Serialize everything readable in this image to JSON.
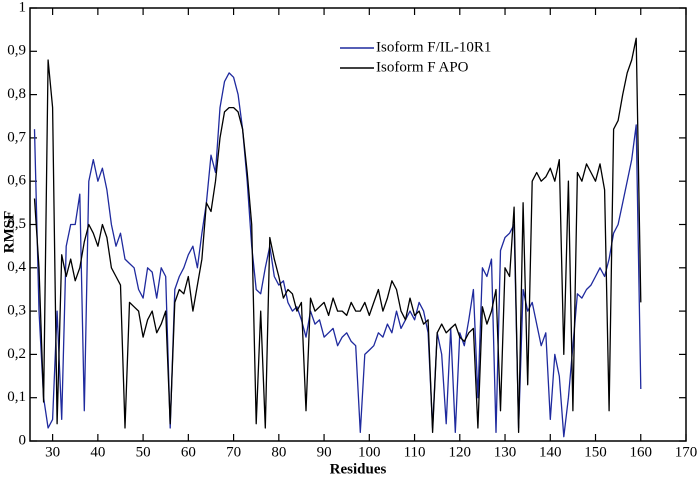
{
  "chart_data": {
    "type": "line",
    "xlabel": "Residues",
    "ylabel": "RMSF",
    "xlim": [
      25,
      170
    ],
    "xticks": [
      30,
      40,
      50,
      60,
      70,
      80,
      90,
      100,
      110,
      120,
      130,
      140,
      150,
      160,
      170
    ],
    "ylim": [
      0,
      1
    ],
    "yticks": [
      0,
      {
        "value": 0.1,
        "label": "0,1"
      },
      {
        "value": 0.2,
        "label": "0,2"
      },
      {
        "value": 0.3,
        "label": "0,3"
      },
      {
        "value": 0.4,
        "label": "0,4"
      },
      {
        "value": 0.5,
        "label": "0,5"
      },
      {
        "value": 0.6,
        "label": "0,6"
      },
      {
        "value": 0.7,
        "label": "0,7"
      },
      {
        "value": 0.8,
        "label": "0,8"
      },
      {
        "value": 0.9,
        "label": "0,9"
      },
      1
    ],
    "legend": "top",
    "x": [
      26,
      27,
      28,
      29,
      30,
      31,
      32,
      33,
      34,
      35,
      36,
      37,
      38,
      39,
      40,
      41,
      42,
      43,
      44,
      45,
      46,
      47,
      48,
      49,
      50,
      51,
      52,
      53,
      54,
      55,
      56,
      57,
      58,
      59,
      60,
      61,
      62,
      63,
      64,
      65,
      66,
      67,
      68,
      69,
      70,
      71,
      72,
      73,
      74,
      75,
      76,
      77,
      78,
      79,
      80,
      81,
      82,
      83,
      84,
      85,
      86,
      87,
      88,
      89,
      90,
      91,
      92,
      93,
      94,
      95,
      96,
      97,
      98,
      99,
      100,
      101,
      102,
      103,
      104,
      105,
      106,
      107,
      108,
      109,
      110,
      111,
      112,
      113,
      114,
      115,
      116,
      117,
      118,
      119,
      120,
      121,
      122,
      123,
      124,
      125,
      126,
      127,
      128,
      129,
      130,
      131,
      132,
      133,
      134,
      135,
      136,
      137,
      138,
      139,
      140,
      141,
      142,
      143,
      144,
      145,
      146,
      147,
      148,
      149,
      150,
      151,
      152,
      153,
      154,
      155,
      156,
      157,
      158,
      159,
      160
    ],
    "series": [
      {
        "name": "Isoform F/IL-10R1",
        "color": "#1f2a9e",
        "values": [
          0.72,
          0.3,
          0.1,
          0.03,
          0.05,
          0.3,
          0.05,
          0.45,
          0.5,
          0.5,
          0.57,
          0.07,
          0.6,
          0.65,
          0.6,
          0.63,
          0.58,
          0.5,
          0.45,
          0.48,
          0.42,
          0.41,
          0.4,
          0.35,
          0.33,
          0.4,
          0.39,
          0.33,
          0.4,
          0.38,
          0.03,
          0.35,
          0.38,
          0.4,
          0.43,
          0.45,
          0.4,
          0.48,
          0.55,
          0.66,
          0.62,
          0.77,
          0.83,
          0.85,
          0.84,
          0.8,
          0.72,
          0.6,
          0.45,
          0.35,
          0.34,
          0.4,
          0.45,
          0.38,
          0.36,
          0.37,
          0.32,
          0.3,
          0.31,
          0.28,
          0.24,
          0.3,
          0.27,
          0.28,
          0.24,
          0.25,
          0.26,
          0.22,
          0.24,
          0.25,
          0.23,
          0.22,
          0.02,
          0.2,
          0.21,
          0.22,
          0.25,
          0.24,
          0.27,
          0.25,
          0.3,
          0.26,
          0.28,
          0.3,
          0.28,
          0.32,
          0.3,
          0.25,
          0.03,
          0.25,
          0.2,
          0.04,
          0.26,
          0.02,
          0.25,
          0.22,
          0.28,
          0.35,
          0.1,
          0.4,
          0.38,
          0.42,
          0.02,
          0.44,
          0.47,
          0.48,
          0.5,
          0.03,
          0.35,
          0.3,
          0.32,
          0.27,
          0.22,
          0.25,
          0.05,
          0.2,
          0.15,
          0.01,
          0.1,
          0.22,
          0.34,
          0.33,
          0.35,
          0.36,
          0.38,
          0.4,
          0.38,
          0.42,
          0.48,
          0.5,
          0.55,
          0.6,
          0.65,
          0.73,
          0.12
        ]
      },
      {
        "name": "Isoform F APO",
        "color": "#000000",
        "values": [
          0.56,
          0.4,
          0.09,
          0.88,
          0.77,
          0.04,
          0.43,
          0.38,
          0.42,
          0.37,
          0.4,
          0.46,
          0.5,
          0.48,
          0.45,
          0.5,
          0.47,
          0.4,
          0.38,
          0.36,
          0.03,
          0.32,
          0.31,
          0.3,
          0.24,
          0.28,
          0.3,
          0.25,
          0.27,
          0.3,
          0.04,
          0.32,
          0.35,
          0.34,
          0.38,
          0.3,
          0.36,
          0.42,
          0.55,
          0.53,
          0.6,
          0.7,
          0.76,
          0.77,
          0.77,
          0.76,
          0.72,
          0.62,
          0.5,
          0.04,
          0.3,
          0.03,
          0.47,
          0.42,
          0.38,
          0.33,
          0.35,
          0.34,
          0.3,
          0.32,
          0.07,
          0.33,
          0.3,
          0.31,
          0.32,
          0.29,
          0.33,
          0.3,
          0.3,
          0.29,
          0.32,
          0.3,
          0.3,
          0.32,
          0.29,
          0.32,
          0.35,
          0.3,
          0.33,
          0.37,
          0.35,
          0.3,
          0.28,
          0.33,
          0.29,
          0.3,
          0.27,
          0.28,
          0.02,
          0.25,
          0.27,
          0.25,
          0.26,
          0.27,
          0.24,
          0.23,
          0.25,
          0.26,
          0.03,
          0.31,
          0.27,
          0.3,
          0.35,
          0.07,
          0.4,
          0.38,
          0.54,
          0.02,
          0.55,
          0.13,
          0.6,
          0.62,
          0.6,
          0.61,
          0.63,
          0.6,
          0.65,
          0.2,
          0.6,
          0.07,
          0.62,
          0.6,
          0.64,
          0.62,
          0.6,
          0.64,
          0.58,
          0.07,
          0.72,
          0.74,
          0.8,
          0.85,
          0.88,
          0.93,
          0.32
        ]
      }
    ]
  }
}
